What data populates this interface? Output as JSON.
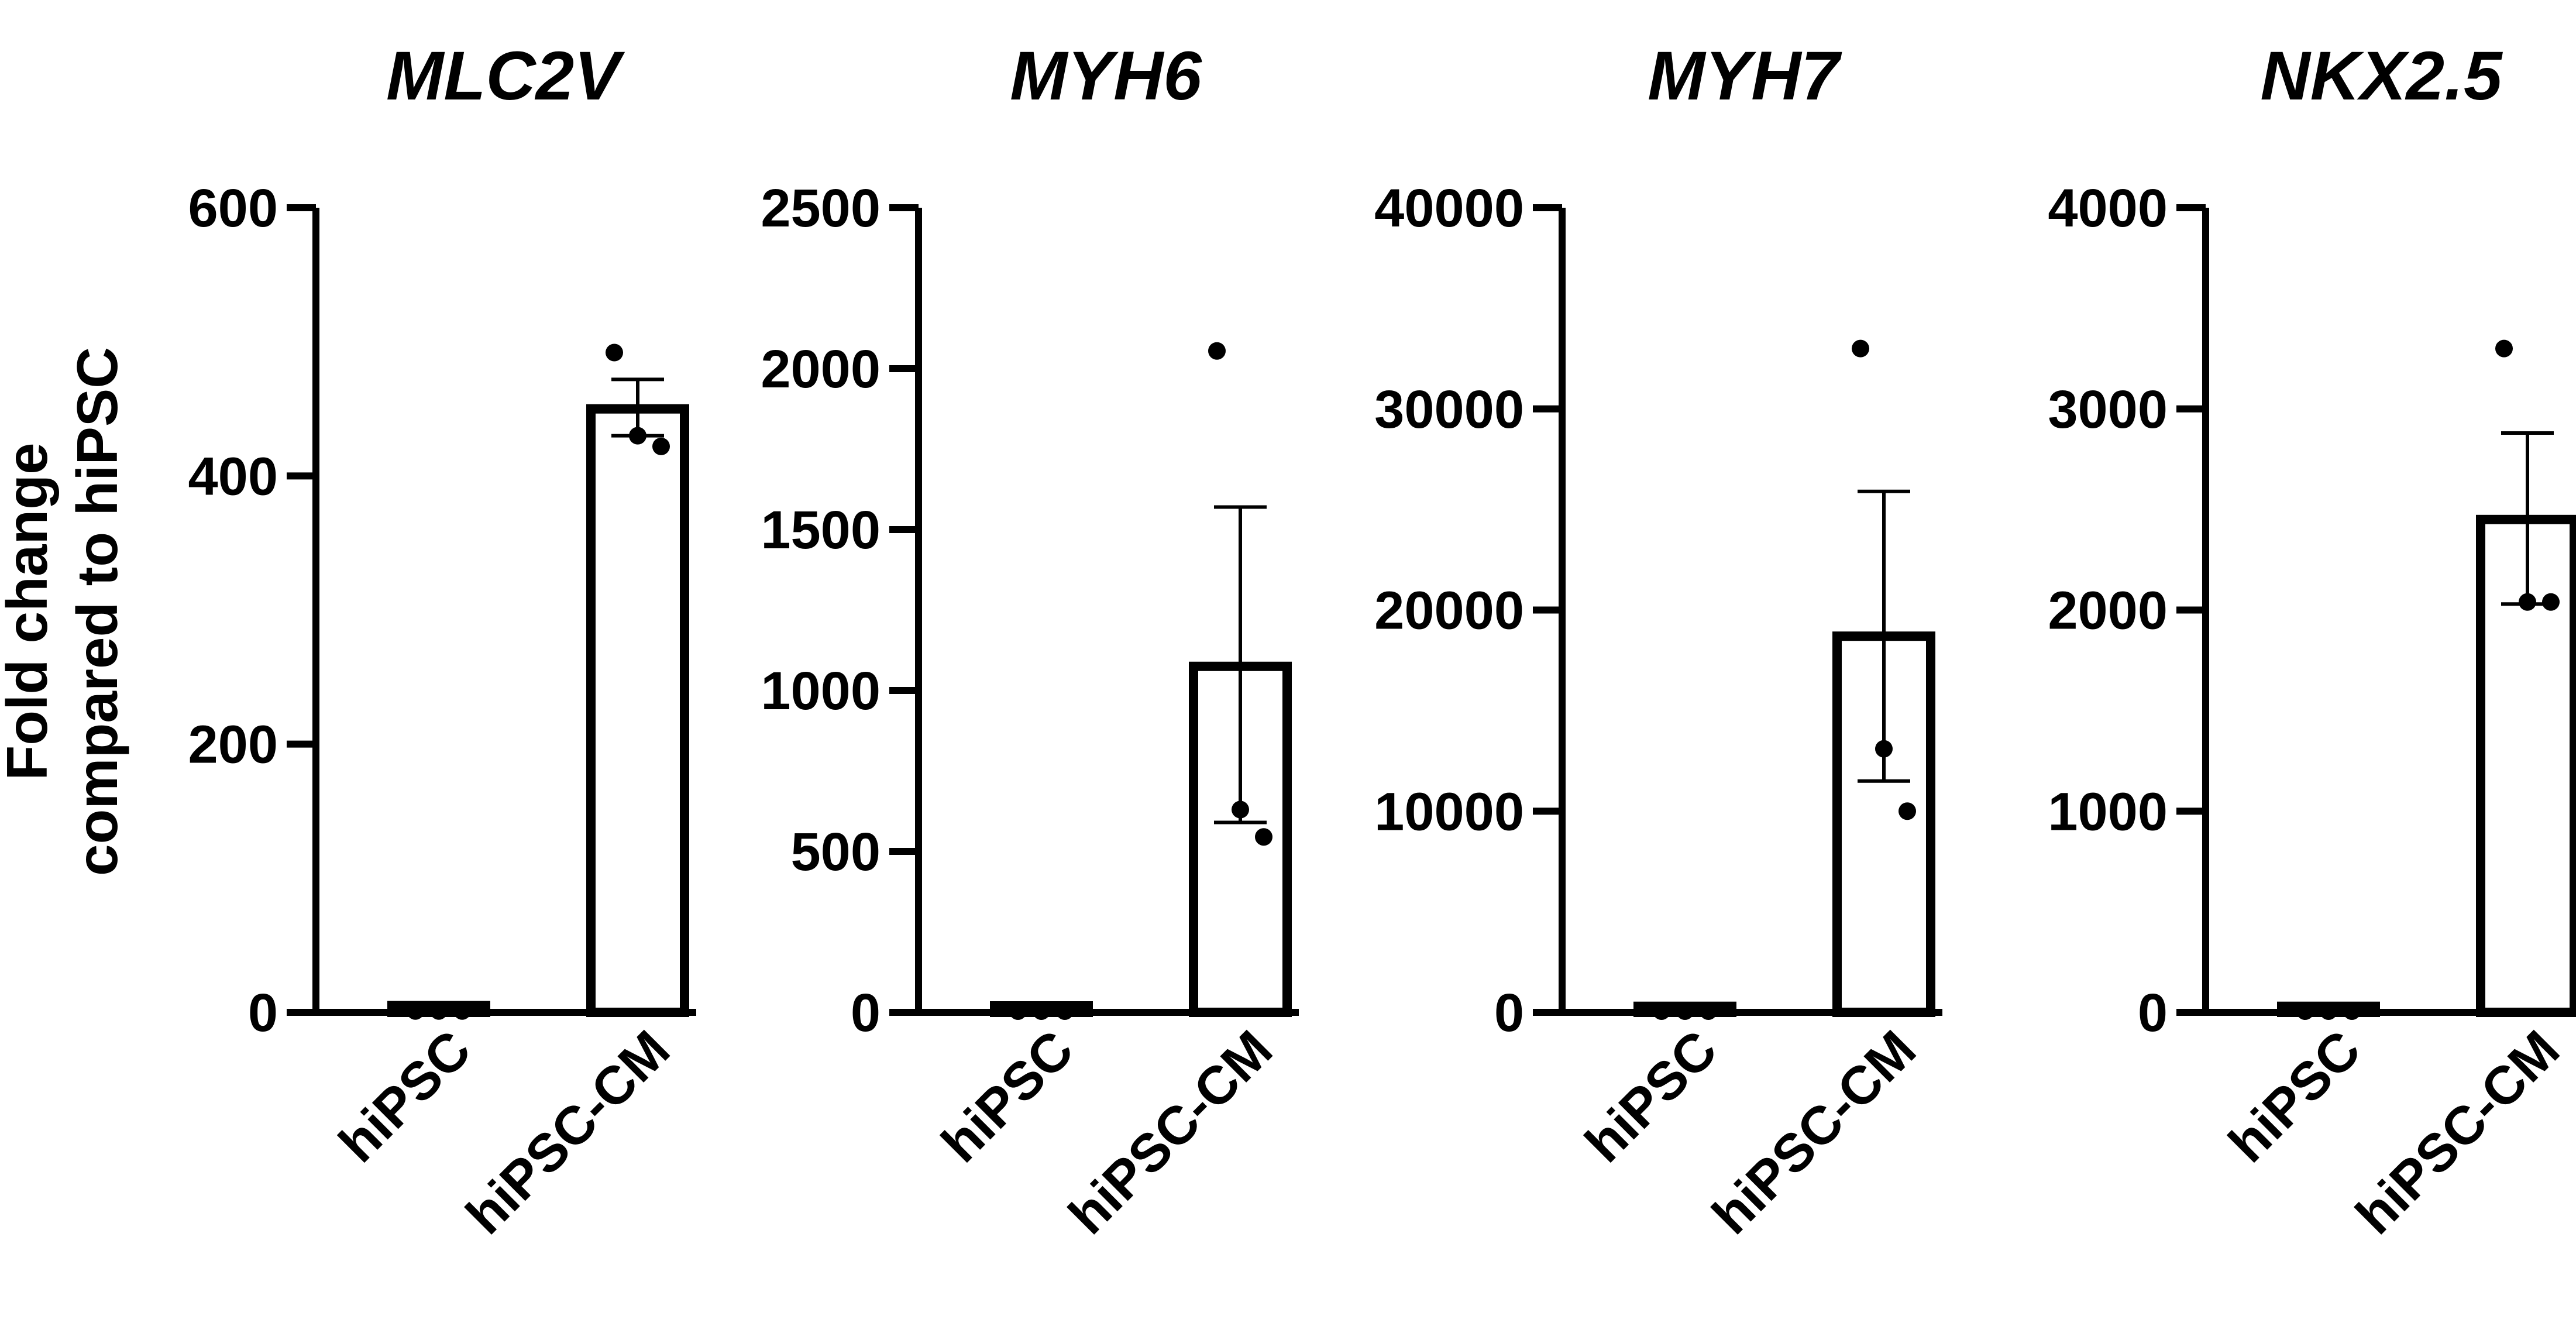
{
  "chart_data": [
    {
      "type": "bar",
      "title": "MLC2V",
      "categories": [
        "hiPSC",
        "hiPSC-CM"
      ],
      "values": [
        5,
        450
      ],
      "error_upper": [
        5,
        472
      ],
      "error_lower": [
        5,
        430
      ],
      "points": [
        [
          1,
          1,
          1
        ],
        [
          492,
          430,
          422
        ]
      ],
      "yticks": [
        "0",
        "200",
        "400",
        "600"
      ],
      "ytick_values": [
        0,
        200,
        400,
        600
      ],
      "ylim": [
        0,
        600
      ]
    },
    {
      "type": "bar",
      "title": "MYH6",
      "categories": [
        "hiPSC",
        "hiPSC-CM"
      ],
      "values": [
        20,
        1075
      ],
      "error_upper": [
        20,
        1570
      ],
      "error_lower": [
        20,
        590
      ],
      "points": [
        [
          1,
          1,
          1
        ],
        [
          2055,
          630,
          545
        ]
      ],
      "yticks": [
        "0",
        "500",
        "1000",
        "1500",
        "2000",
        "2500"
      ],
      "ytick_values": [
        0,
        500,
        1000,
        1500,
        2000,
        2500
      ],
      "ylim": [
        0,
        2500
      ]
    },
    {
      "type": "bar",
      "title": "MYH7",
      "categories": [
        "hiPSC",
        "hiPSC-CM"
      ],
      "values": [
        300,
        18700
      ],
      "error_upper": [
        300,
        25900
      ],
      "error_lower": [
        300,
        11500
      ],
      "points": [
        [
          1,
          1,
          1
        ],
        [
          33000,
          13100,
          10000
        ]
      ],
      "yticks": [
        "0",
        "10000",
        "20000",
        "30000",
        "40000"
      ],
      "ytick_values": [
        0,
        10000,
        20000,
        30000,
        40000
      ],
      "ylim": [
        0,
        40000
      ]
    },
    {
      "type": "bar",
      "title": "NKX2.5",
      "categories": [
        "hiPSC",
        "hiPSC-CM"
      ],
      "values": [
        30,
        2450
      ],
      "error_upper": [
        30,
        2880
      ],
      "error_lower": [
        30,
        2030
      ],
      "points": [
        [
          1,
          1,
          1
        ],
        [
          3300,
          2040,
          2040
        ]
      ],
      "yticks": [
        "0",
        "1000",
        "2000",
        "3000",
        "4000"
      ],
      "ytick_values": [
        0,
        1000,
        2000,
        3000,
        4000
      ],
      "ylim": [
        0,
        4000
      ]
    }
  ],
  "ylabel_lines": [
    "Fold change",
    "compared to hiPSC"
  ]
}
